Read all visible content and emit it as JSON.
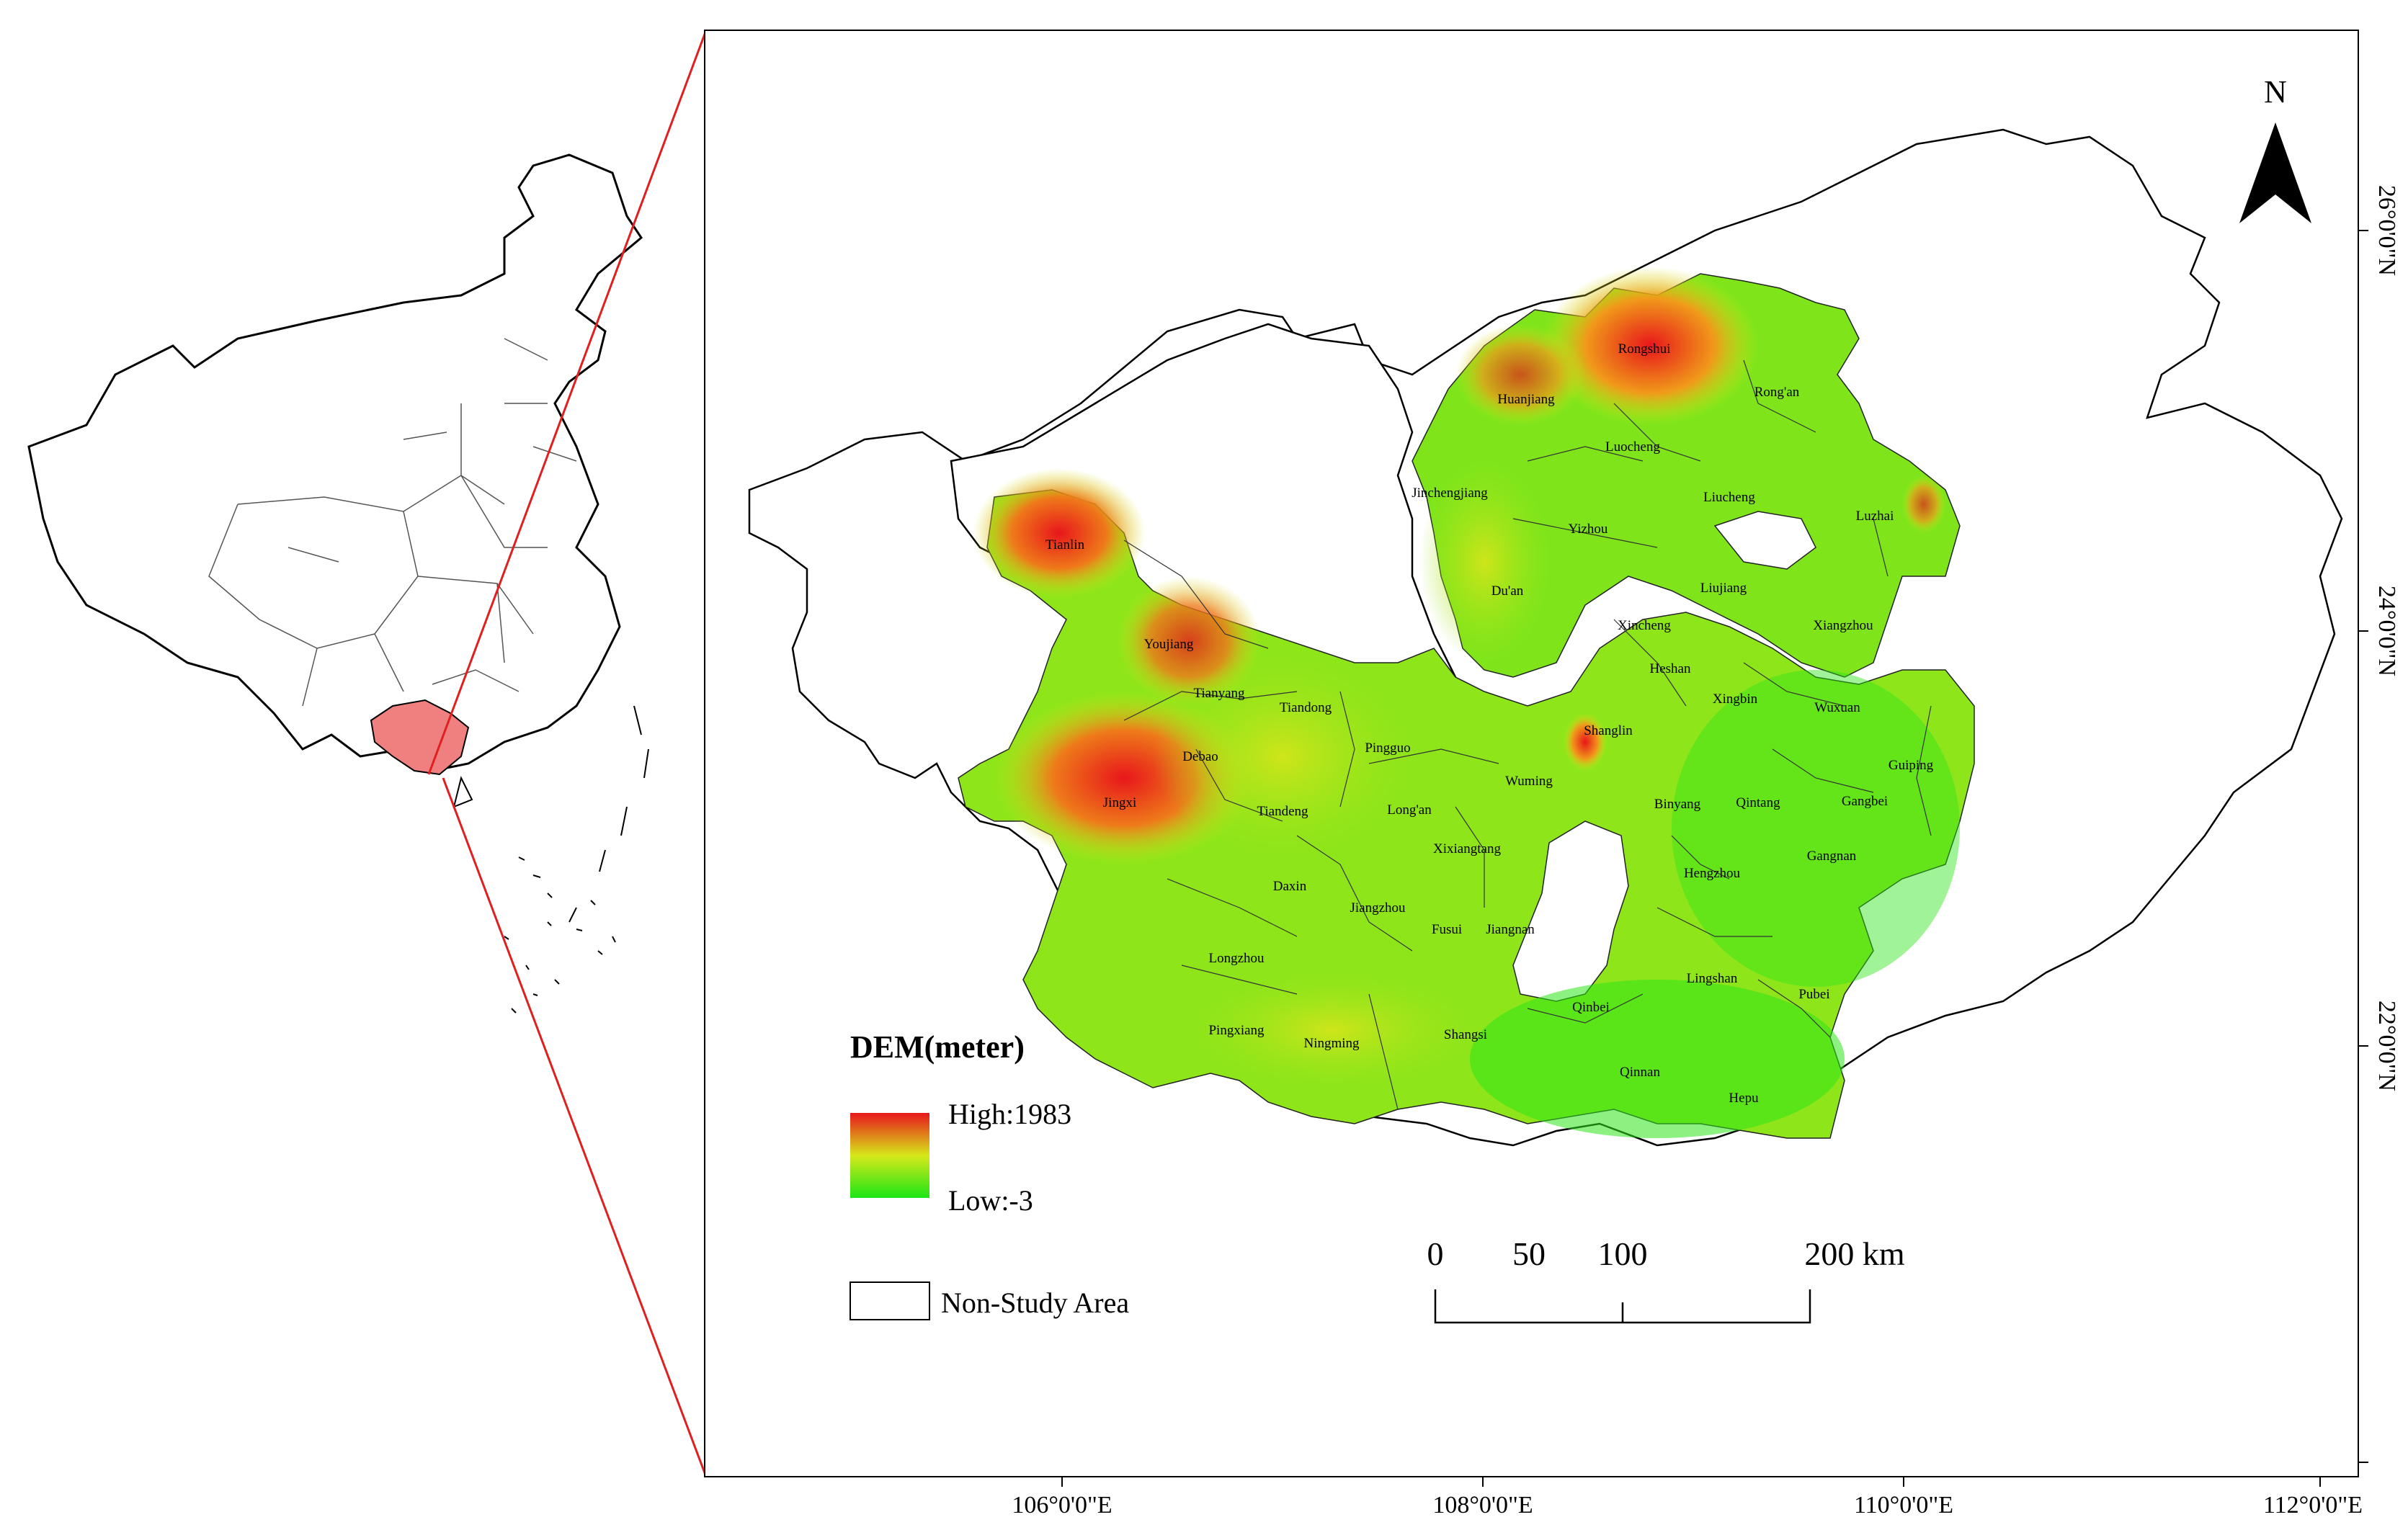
{
  "north_label": "N",
  "legend": {
    "title": "DEM(meter)",
    "high_label": "High:1983",
    "low_label": "Low:-3",
    "non_study_label": "Non-Study Area",
    "colors": {
      "high": "#e8161b",
      "mid": "#d7e81a",
      "low": "#1be516"
    }
  },
  "scale_bar": {
    "labels": [
      "0",
      "50",
      "100",
      "200 km"
    ]
  },
  "longitude_ticks": [
    "106°0'0\"E",
    "108°0'0\"E",
    "110°0'0\"E",
    "112°0'0\"E"
  ],
  "latitude_ticks": [
    "26°0'0\"N",
    "24°0'0\"N",
    "22°0'0\"N"
  ],
  "counties": [
    "Rongshui",
    "Rong'an",
    "Huanjiang",
    "Luocheng",
    "Jinchengjiang",
    "Liucheng",
    "Luzhai",
    "Yizhou",
    "Tianlin",
    "Du'an",
    "Liujiang",
    "Xincheng",
    "Xiangzhou",
    "Youjiang",
    "Heshan",
    "Tianyang",
    "Tiandong",
    "Xingbin",
    "Wuxuan",
    "Shanglin",
    "Debao",
    "Pingguo",
    "Guiping",
    "Wuming",
    "Jingxi",
    "Long'an",
    "Binyang",
    "Qintang",
    "Gangbei",
    "Tiandeng",
    "Xixiangtang",
    "Gangnan",
    "Daxin",
    "Hengzhou",
    "Jiangzhou",
    "Fusui",
    "Jiangnan",
    "Longzhou",
    "Lingshan",
    "Pubei",
    "Qinbei",
    "Pingxiang",
    "Ningming",
    "Shangsi",
    "Qinnan",
    "Hepu"
  ],
  "inset_map": {
    "highlight_color": "#f08080",
    "callout_color": "#e02020"
  }
}
